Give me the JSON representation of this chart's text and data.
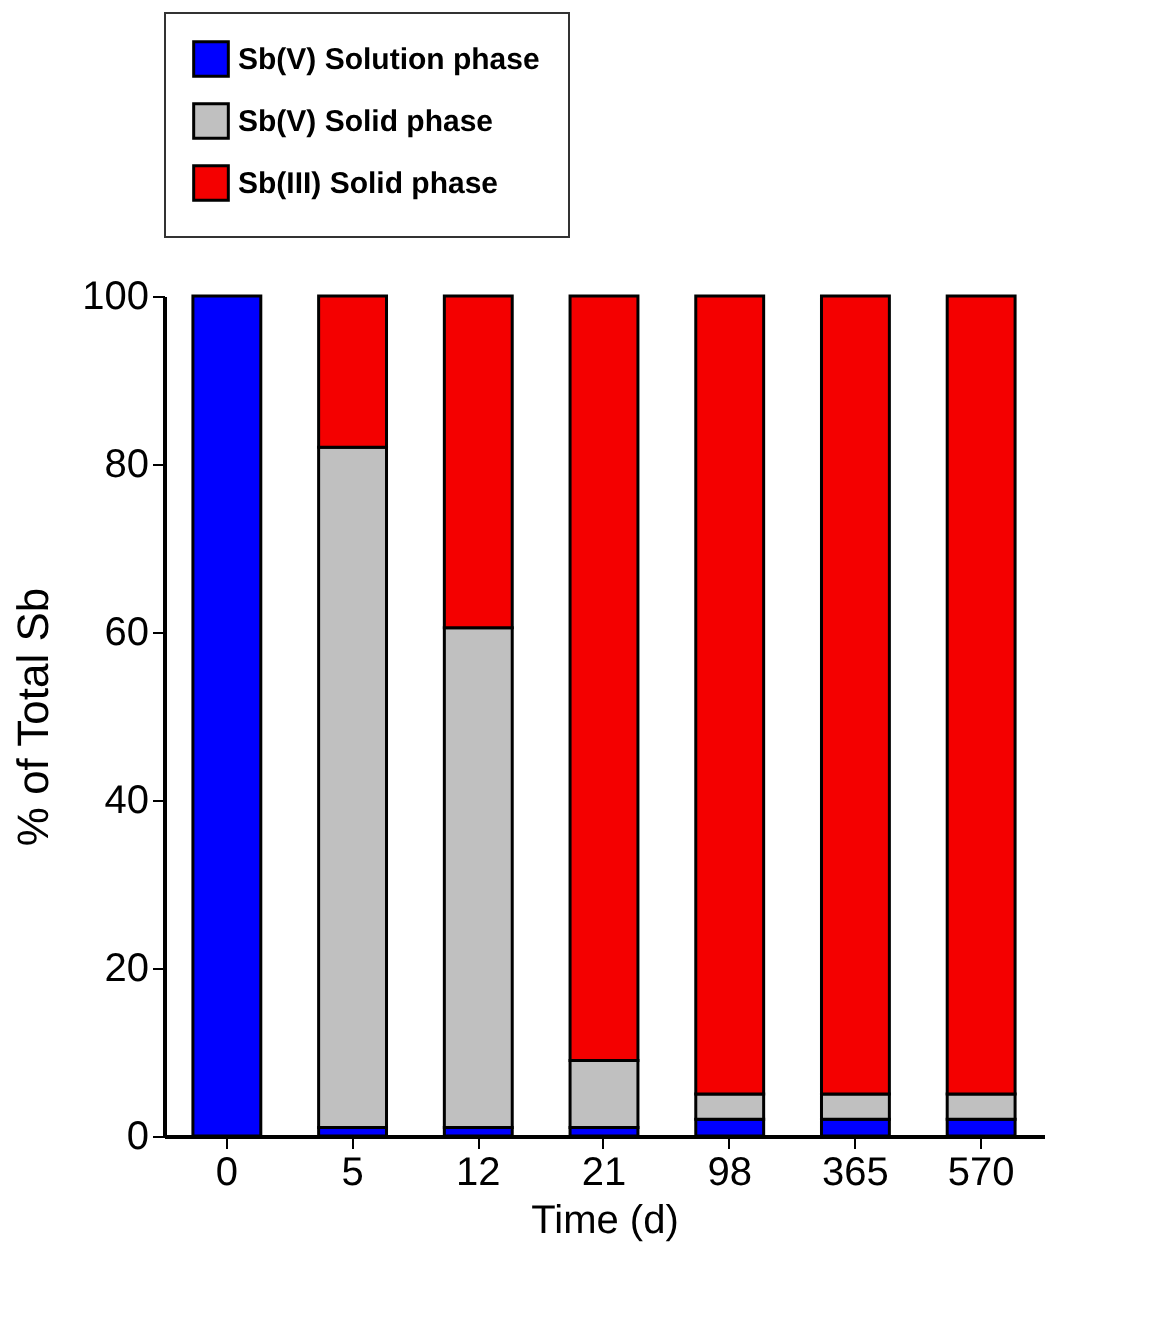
{
  "chart_data": {
    "type": "bar",
    "stacked": true,
    "xlabel": "Time (d)",
    "ylabel": "% of Total Sb",
    "categories": [
      "0",
      "5",
      "12",
      "21",
      "98",
      "365",
      "570"
    ],
    "ylim": [
      0,
      100
    ],
    "yticks": [
      0,
      20,
      40,
      60,
      80,
      100
    ],
    "legend": "top",
    "grid": false,
    "series": [
      {
        "name": "Sb(V) Solution phase",
        "color": "#0000ff",
        "values": [
          100,
          1,
          1,
          1,
          2,
          2,
          2
        ]
      },
      {
        "name": "Sb(V) Solid phase",
        "color": "#c0c0c0",
        "values": [
          null,
          81,
          59.5,
          8,
          3,
          3,
          3
        ]
      },
      {
        "name": "Sb(III) Solid phase",
        "color": "#f40000",
        "values": [
          null,
          18,
          39.5,
          91,
          95,
          95,
          95
        ]
      }
    ]
  }
}
